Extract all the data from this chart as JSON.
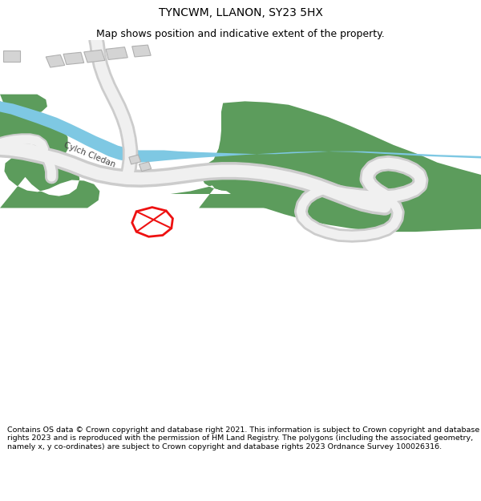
{
  "title": "TYNCWM, LLANON, SY23 5HX",
  "subtitle": "Map shows position and indicative extent of the property.",
  "footer": "Contains OS data © Crown copyright and database right 2021. This information is subject to Crown copyright and database rights 2023 and is reproduced with the permission of HM Land Registry. The polygons (including the associated geometry, namely x, y co-ordinates) are subject to Crown copyright and database rights 2023 Ordnance Survey 100026316.",
  "background_color": "#ffffff",
  "map_bg": "#ffffff",
  "green_color": "#5c9c5c",
  "blue_color": "#7ec8e3",
  "road_fill": "#f0f0f0",
  "road_edge": "#cccccc",
  "building_color": "#d4d4d4",
  "building_outline": "#b0b0b0",
  "plot_color": "#ee1111",
  "road_label": "Cylch Cledan",
  "title_fontsize": 10,
  "subtitle_fontsize": 9,
  "footer_fontsize": 6.8,
  "figsize": [
    6.0,
    6.25
  ],
  "dpi": 100
}
